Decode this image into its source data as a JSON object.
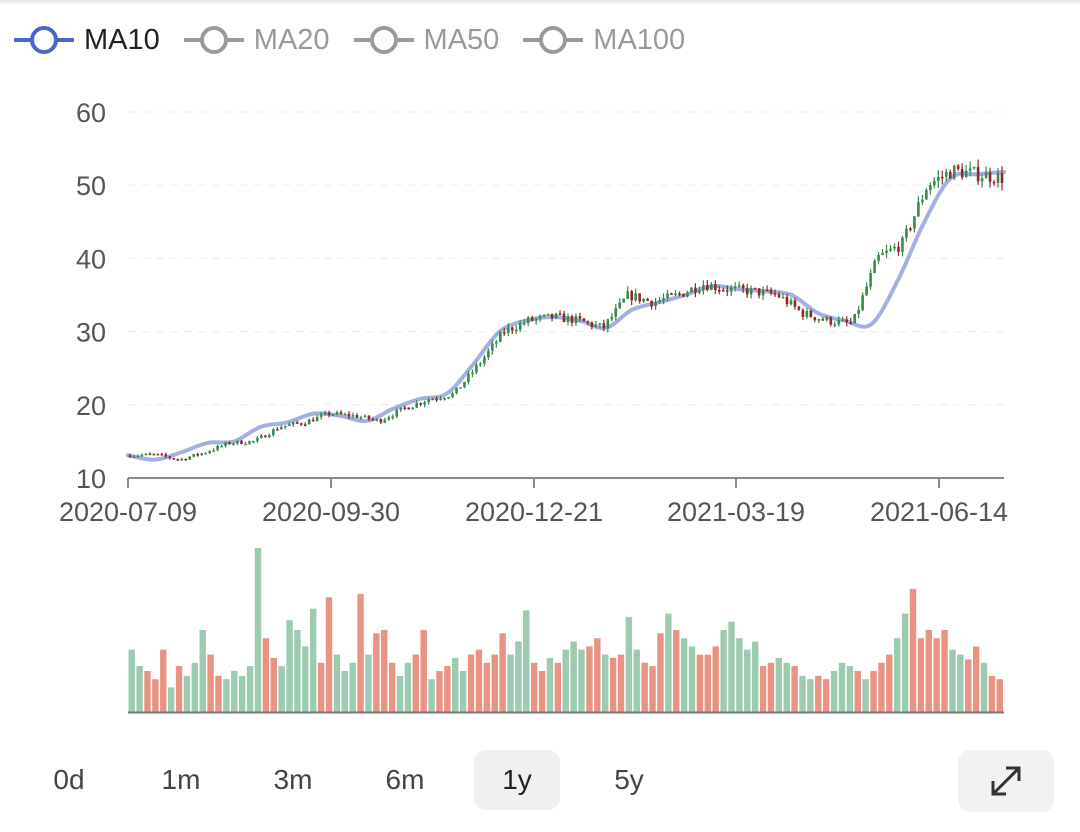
{
  "legend": [
    {
      "label": "MA10",
      "active": true,
      "color": "#4a68c8"
    },
    {
      "label": "MA20",
      "active": false,
      "color": "#9a9a9a"
    },
    {
      "label": "MA50",
      "active": false,
      "color": "#9a9a9a"
    },
    {
      "label": "MA100",
      "active": false,
      "color": "#9a9a9a"
    }
  ],
  "colors": {
    "up": "#3a8a4e",
    "down": "#8c2a2a",
    "ma10": "#a3b1e0",
    "volume_up": "#9cccb0",
    "volume_down": "#e89383",
    "grid": "#ececec",
    "axis": "#8a8a8a"
  },
  "chart_data": {
    "type": "candlestick",
    "ylim": [
      10,
      60
    ],
    "y_ticks": [
      10,
      20,
      30,
      40,
      50,
      60
    ],
    "x_labels": [
      "2020-07-09",
      "2020-09-30",
      "2020-12-21",
      "2021-03-19",
      "2021-06-14"
    ],
    "ma10": [
      13.1,
      12.5,
      13.5,
      14.8,
      15,
      17,
      17.6,
      18.8,
      18.5,
      17.8,
      19.5,
      20.8,
      21.5,
      25.5,
      30,
      31.5,
      32,
      31.5,
      30.5,
      33,
      34,
      35,
      36.2,
      35.8,
      35.5,
      35,
      32.5,
      31.5,
      31,
      37,
      45,
      51,
      51.5,
      51.8
    ],
    "close_keypoints": [
      13.1,
      13.2,
      12.5,
      13.5,
      14.8,
      15,
      17,
      17.6,
      18.8,
      18.5,
      17.8,
      19.5,
      20.8,
      21.5,
      25.5,
      30,
      31.5,
      32,
      31.5,
      30.5,
      35,
      34,
      35,
      36.5,
      35.8,
      35.5,
      35,
      32.5,
      31.5,
      31,
      40,
      42,
      50,
      52,
      51.5,
      51
    ]
  },
  "volume_chart": {
    "type": "bar",
    "series": "trading volume",
    "relative_volumes": [
      0.38,
      0.28,
      0.25,
      0.2,
      0.38,
      0.15,
      0.28,
      0.22,
      0.3,
      0.5,
      0.35,
      0.22,
      0.2,
      0.25,
      0.22,
      0.28,
      1.0,
      0.45,
      0.33,
      0.28,
      0.56,
      0.5,
      0.4,
      0.63,
      0.3,
      0.7,
      0.35,
      0.25,
      0.3,
      0.72,
      0.35,
      0.48,
      0.5,
      0.3,
      0.22,
      0.3,
      0.35,
      0.5,
      0.2,
      0.25,
      0.28,
      0.33,
      0.25,
      0.35,
      0.38,
      0.3,
      0.35,
      0.48,
      0.35,
      0.43,
      0.62,
      0.3,
      0.25,
      0.33,
      0.3,
      0.38,
      0.43,
      0.38,
      0.4,
      0.45,
      0.35,
      0.33,
      0.35,
      0.58,
      0.38,
      0.3,
      0.28,
      0.48,
      0.6,
      0.5,
      0.45,
      0.4,
      0.35,
      0.35,
      0.4,
      0.5,
      0.55,
      0.45,
      0.38,
      0.43,
      0.28,
      0.3,
      0.33,
      0.3,
      0.28,
      0.22,
      0.2,
      0.22,
      0.2,
      0.25,
      0.3,
      0.28,
      0.25,
      0.2,
      0.25,
      0.3,
      0.35,
      0.45,
      0.6,
      0.75,
      0.45,
      0.5,
      0.45,
      0.5,
      0.38,
      0.35,
      0.32,
      0.4,
      0.3,
      0.22,
      0.2
    ]
  },
  "ranges": [
    {
      "label": "0d",
      "active": false
    },
    {
      "label": "1m",
      "active": false
    },
    {
      "label": "3m",
      "active": false
    },
    {
      "label": "6m",
      "active": false
    },
    {
      "label": "1y",
      "active": true
    },
    {
      "label": "5y",
      "active": false
    }
  ],
  "expand_icon": "expand-icon"
}
